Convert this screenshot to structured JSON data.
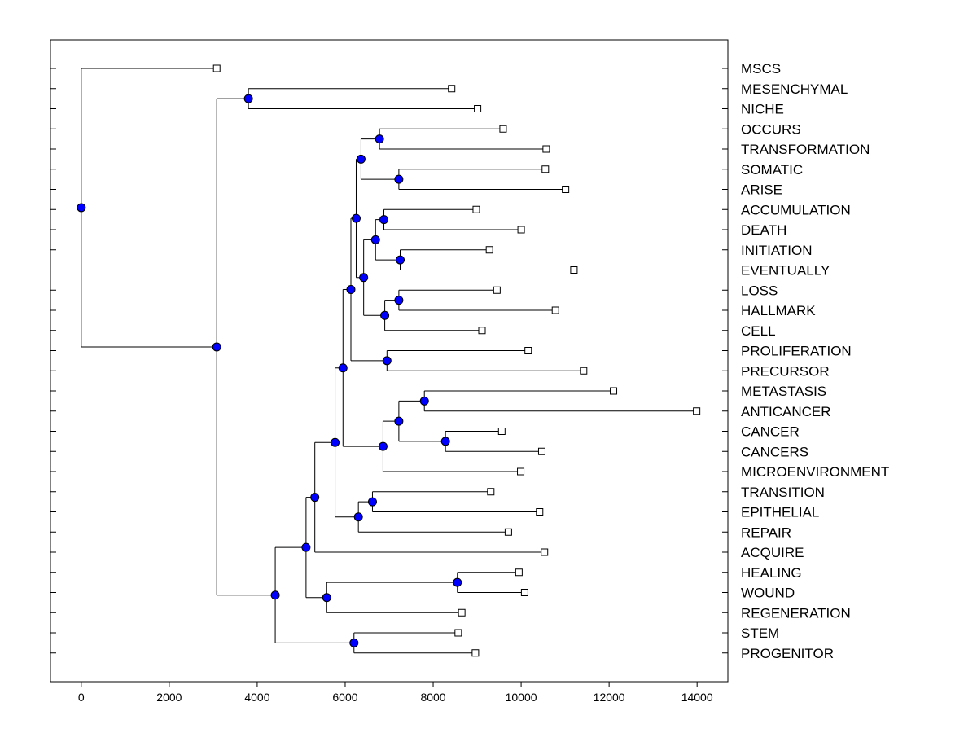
{
  "chart_data": {
    "type": "dendrogram",
    "title": "",
    "xlabel": "",
    "ylabel": "",
    "xlim": [
      -700,
      14700
    ],
    "x_ticks": [
      0,
      2000,
      4000,
      6000,
      8000,
      10000,
      12000,
      14000
    ],
    "x_tick_labels": [
      "0",
      "2000",
      "4000",
      "6000",
      "8000",
      "10000",
      "12000",
      "14000"
    ],
    "colors": {
      "node": "#0000ff",
      "line": "#000000",
      "leaf_fill": "#ffffff"
    },
    "leaves": [
      {
        "label": "MSCS",
        "x": 3080
      },
      {
        "label": "MESENCHYMAL",
        "x": 8420
      },
      {
        "label": "NICHE",
        "x": 9010
      },
      {
        "label": "OCCURS",
        "x": 9590
      },
      {
        "label": "TRANSFORMATION",
        "x": 10570
      },
      {
        "label": "SOMATIC",
        "x": 10550
      },
      {
        "label": "ARISE",
        "x": 11010
      },
      {
        "label": "ACCUMULATION",
        "x": 8980
      },
      {
        "label": "DEATH",
        "x": 10000
      },
      {
        "label": "INITIATION",
        "x": 9280
      },
      {
        "label": "EVENTUALLY",
        "x": 11200
      },
      {
        "label": "LOSS",
        "x": 9450
      },
      {
        "label": "HALLMARK",
        "x": 10780
      },
      {
        "label": "CELL",
        "x": 9110
      },
      {
        "label": "PROLIFERATION",
        "x": 10160
      },
      {
        "label": "PRECURSOR",
        "x": 11420
      },
      {
        "label": "METASTASIS",
        "x": 12100
      },
      {
        "label": "ANTICANCER",
        "x": 13990
      },
      {
        "label": "CANCER",
        "x": 9560
      },
      {
        "label": "CANCERS",
        "x": 10470
      },
      {
        "label": "MICROENVIRONMENT",
        "x": 9990
      },
      {
        "label": "TRANSITION",
        "x": 9310
      },
      {
        "label": "EPITHELIAL",
        "x": 10420
      },
      {
        "label": "REPAIR",
        "x": 9710
      },
      {
        "label": "ACQUIRE",
        "x": 10530
      },
      {
        "label": "HEALING",
        "x": 9950
      },
      {
        "label": "WOUND",
        "x": 10080
      },
      {
        "label": "REGENERATION",
        "x": 8650
      },
      {
        "label": "STEM",
        "x": 8570
      },
      {
        "label": "PROGENITOR",
        "x": 8960
      }
    ],
    "merges": [
      {
        "id": "n_mes_niche",
        "x": 3800,
        "children": [
          "MESENCHYMAL",
          "NICHE"
        ]
      },
      {
        "id": "n_occ_tra",
        "x": 6780,
        "children": [
          "OCCURS",
          "TRANSFORMATION"
        ]
      },
      {
        "id": "n_som_ari",
        "x": 7220,
        "children": [
          "SOMATIC",
          "ARISE"
        ]
      },
      {
        "id": "n_ot_sa",
        "x": 6360,
        "children": [
          "n_occ_tra",
          "n_som_ari"
        ]
      },
      {
        "id": "n_acc_dea",
        "x": 6880,
        "children": [
          "ACCUMULATION",
          "DEATH"
        ]
      },
      {
        "id": "n_ini_eve",
        "x": 7250,
        "children": [
          "INITIATION",
          "EVENTUALLY"
        ]
      },
      {
        "id": "n_ad_ie",
        "x": 6690,
        "children": [
          "n_acc_dea",
          "n_ini_eve"
        ]
      },
      {
        "id": "n_los_hal",
        "x": 7220,
        "children": [
          "LOSS",
          "HALLMARK"
        ]
      },
      {
        "id": "n_lh_cel",
        "x": 6900,
        "children": [
          "n_los_hal",
          "CELL"
        ]
      },
      {
        "id": "n_adie_lhc",
        "x": 6420,
        "children": [
          "n_ad_ie",
          "n_lh_cel"
        ]
      },
      {
        "id": "n_osa_adl",
        "x": 6250,
        "children": [
          "n_ot_sa",
          "n_adie_lhc"
        ]
      },
      {
        "id": "n_pro_pre",
        "x": 6950,
        "children": [
          "PROLIFERATION",
          "PRECURSOR"
        ]
      },
      {
        "id": "n_a_pp",
        "x": 6130,
        "children": [
          "n_osa_adl",
          "n_pro_pre"
        ]
      },
      {
        "id": "n_met_ant",
        "x": 7800,
        "children": [
          "METASTASIS",
          "ANTICANCER"
        ]
      },
      {
        "id": "n_can_cas",
        "x": 8280,
        "children": [
          "CANCER",
          "CANCERS"
        ]
      },
      {
        "id": "n_ma_cc",
        "x": 7220,
        "children": [
          "n_met_ant",
          "n_can_cas"
        ]
      },
      {
        "id": "n_mc_mic",
        "x": 6860,
        "children": [
          "n_ma_cc",
          "MICROENVIRONMENT"
        ]
      },
      {
        "id": "n_b_c",
        "x": 5950,
        "children": [
          "n_a_pp",
          "n_mc_mic"
        ]
      },
      {
        "id": "n_tra_epi",
        "x": 6620,
        "children": [
          "TRANSITION",
          "EPITHELIAL"
        ]
      },
      {
        "id": "n_te_rep",
        "x": 6300,
        "children": [
          "n_tra_epi",
          "REPAIR"
        ]
      },
      {
        "id": "n_d_te",
        "x": 5770,
        "children": [
          "n_b_c",
          "n_te_rep"
        ]
      },
      {
        "id": "n_e_acq",
        "x": 5310,
        "children": [
          "n_d_te",
          "ACQUIRE"
        ]
      },
      {
        "id": "n_hea_wou",
        "x": 8550,
        "children": [
          "HEALING",
          "WOUND"
        ]
      },
      {
        "id": "n_hw_reg",
        "x": 5580,
        "children": [
          "n_hea_wou",
          "REGENERATION"
        ]
      },
      {
        "id": "n_f_hwr",
        "x": 5110,
        "children": [
          "n_e_acq",
          "n_hw_reg"
        ]
      },
      {
        "id": "n_ste_pro",
        "x": 6200,
        "children": [
          "STEM",
          "PROGENITOR"
        ]
      },
      {
        "id": "n_g_sp",
        "x": 4410,
        "children": [
          "n_f_hwr",
          "n_ste_pro"
        ]
      },
      {
        "id": "n_mn_big",
        "x": 3080,
        "children": [
          "n_mes_niche",
          "n_g_sp"
        ]
      },
      {
        "id": "n_root",
        "x": 0,
        "children": [
          "MSCS",
          "n_mn_big"
        ]
      }
    ]
  }
}
